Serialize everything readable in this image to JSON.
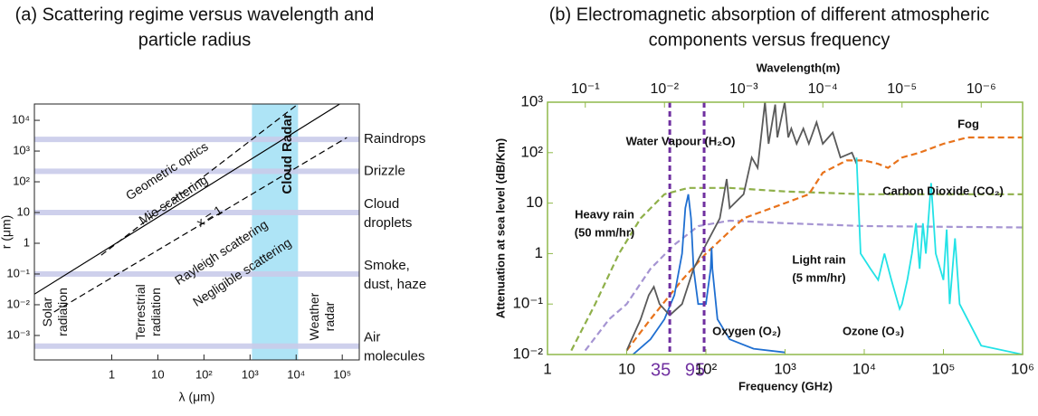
{
  "chart_data": [
    {
      "type": "regime",
      "title": [
        "(a) Scattering regime versus wavelength and",
        "particle radius"
      ],
      "xlabel": "λ (μm)",
      "ylabel": "r (μm)",
      "xscale": "log",
      "yscale": "log",
      "xlim": [
        0.021,
        234000
      ],
      "ylim": [
        0.00016,
        34000
      ],
      "xticks": [
        1,
        10,
        {
          "value": 100,
          "label": "10²"
        },
        {
          "value": 1000,
          "label": "10³"
        },
        {
          "value": 10000,
          "label": "10⁴"
        },
        {
          "value": 100000,
          "label": "10⁵"
        }
      ],
      "yticks": [
        {
          "value": 0.001,
          "label": "10⁻³"
        },
        {
          "value": 0.01,
          "label": "10⁻²"
        },
        {
          "value": 0.1,
          "label": "10⁻¹"
        },
        1,
        10,
        {
          "value": 100,
          "label": "10²"
        },
        {
          "value": 1000,
          "label": "10³"
        },
        {
          "value": 10000,
          "label": "10⁴"
        }
      ],
      "bands_color": "#c9cbea",
      "bands": [
        {
          "label": [
            "Raindrops"
          ],
          "value": 2400
        },
        {
          "label": [
            "Drizzle"
          ],
          "value": 220
        },
        {
          "label": [
            "Cloud",
            "droplets"
          ],
          "value": 10
        },
        {
          "label": [
            "Smoke,",
            "dust, haze"
          ],
          "value": 0.1
        },
        {
          "label": [
            "Air",
            "molecules"
          ],
          "value": 0.00045
        }
      ],
      "highlight": {
        "label": "Cloud Radar",
        "range": [
          1100,
          11000
        ],
        "color": "#aee4f6"
      },
      "series": [
        {
          "name": "x = 1",
          "color": "#000000",
          "dash": false,
          "x": [
            0.021,
            88000
          ],
          "values": [
            0.022,
            34000
          ]
        },
        {
          "color": "#000000",
          "dash": true,
          "x": [
            0.59,
            11000
          ],
          "values": [
            0.41,
            34000
          ]
        },
        {
          "color": "#000000",
          "dash": true,
          "x": [
            0.056,
            126000
          ],
          "values": [
            0.0058,
            2750
          ]
        }
      ],
      "annotations": [
        "Geometric optics",
        "Mie scattering",
        "Rayleigh scattering",
        "Negligible scattering",
        [
          "Solar",
          "radiation"
        ],
        [
          "Terrestrial",
          "radiation"
        ],
        [
          "Weather",
          "radar"
        ]
      ]
    },
    {
      "type": "line",
      "title": [
        "(b) Electromagnetic absorption of different atmospheric",
        "components versus frequency"
      ],
      "xlabel": "Frequency (GHz)",
      "ylabel": "Attenuation at sea level (dB/Km)",
      "x2label": "Wavelength(m)",
      "xscale": "log",
      "yscale": "log",
      "xlim": [
        1,
        1000000
      ],
      "ylim": [
        0.01,
        1000
      ],
      "xticks": [
        1,
        10,
        {
          "value": 100,
          "label": "10²"
        },
        {
          "value": 1000,
          "label": "10³"
        },
        {
          "value": 10000,
          "label": "10⁴"
        },
        {
          "value": 100000,
          "label": "10⁵"
        },
        {
          "value": 1000000,
          "label": "10⁶"
        }
      ],
      "yticks": [
        {
          "value": 0.01,
          "label": "10⁻²"
        },
        {
          "value": 0.1,
          "label": "10⁻¹"
        },
        1,
        10,
        {
          "value": 100,
          "label": "10²"
        },
        {
          "value": 1000,
          "label": "10³"
        }
      ],
      "x2lim": [
        0.3,
        3e-07
      ],
      "x2ticks": [
        {
          "value": 0.1,
          "label": "10⁻¹"
        },
        {
          "value": 0.01,
          "label": "10⁻²"
        },
        {
          "value": 0.001,
          "label": "10⁻³"
        },
        {
          "value": 0.0001,
          "label": "10⁻⁴"
        },
        {
          "value": 1e-05,
          "label": "10⁻⁵"
        },
        {
          "value": 1e-06,
          "label": "10⁻⁶"
        }
      ],
      "frame_color": "#8fb84a",
      "vlines": {
        "values": [
          35,
          95
        ],
        "color": "#7030a0"
      },
      "series": [
        {
          "name": [
            "Heavy rain",
            "(50 mm/hr)"
          ],
          "color": "#8fb04a",
          "dash": true,
          "x": [
            2,
            4,
            8,
            15,
            30,
            60,
            200,
            1000,
            10000,
            1000000
          ],
          "values": [
            0.012,
            0.1,
            1,
            5,
            15,
            20,
            20,
            17,
            15,
            15
          ]
        },
        {
          "name": [
            "Light rain",
            "(5 mm/hr)"
          ],
          "color": "#a594d2",
          "dash": true,
          "x": [
            3,
            6,
            10,
            20,
            40,
            80,
            200,
            1000,
            10000,
            1000000
          ],
          "values": [
            0.012,
            0.05,
            0.1,
            0.5,
            1.5,
            3.5,
            4.5,
            4,
            3.5,
            3.3
          ]
        },
        {
          "name": "Fog",
          "color": "#e8731c",
          "dash": true,
          "x": [
            10,
            20,
            50,
            100,
            300,
            1000,
            2000,
            3000,
            6000,
            10000,
            15000,
            20000,
            30000,
            50000,
            100000,
            200000,
            1000000
          ],
          "values": [
            0.012,
            0.05,
            0.3,
            1,
            5,
            10,
            15,
            40,
            70,
            70,
            60,
            50,
            80,
            100,
            150,
            200,
            200
          ]
        },
        {
          "name": "Oxygen (O₂)",
          "color": "#1f6fd1",
          "dash": false,
          "x": [
            12,
            20,
            30,
            40,
            50,
            55,
            60,
            65,
            70,
            80,
            100,
            115,
            118,
            121,
            140,
            200,
            400,
            1000
          ],
          "values": [
            0.01,
            0.02,
            0.05,
            0.15,
            1,
            8,
            15,
            5,
            0.5,
            0.1,
            0.1,
            0.5,
            1.3,
            0.5,
            0.05,
            0.02,
            0.013,
            0.011
          ]
        },
        {
          "name": "Water Vapour (H₂O)",
          "color": "#5a5a5a",
          "dash": false,
          "x": [
            10,
            15,
            19,
            22,
            26,
            35,
            50,
            70,
            100,
            150,
            183,
            200,
            300,
            380,
            450,
            557,
            620,
            750,
            800,
            990,
            1100,
            1200,
            1400,
            1700,
            2000,
            2500,
            3000,
            4000,
            5000,
            7000,
            8000
          ],
          "values": [
            0.012,
            0.05,
            0.15,
            0.22,
            0.1,
            0.06,
            0.1,
            0.5,
            1.5,
            5,
            30,
            8,
            15,
            80,
            50,
            1000,
            150,
            900,
            200,
            1000,
            200,
            300,
            150,
            300,
            150,
            400,
            150,
            250,
            80,
            100,
            60
          ]
        },
        {
          "name": "Carbon Dioxide (CO₂)",
          "color": "#22e2e6",
          "dash": false,
          "x": [
            8000,
            9000,
            12000,
            15000,
            18000,
            22000,
            28000,
            30000,
            35000,
            40000,
            45000,
            50000,
            55000,
            60000,
            70000,
            80000,
            100000,
            110000,
            120000,
            140000,
            160000,
            300000,
            1000000
          ],
          "values": [
            80,
            1,
            0.5,
            0.3,
            1,
            0.3,
            0.08,
            0.1,
            0.3,
            1,
            4,
            0.5,
            4,
            1,
            25,
            1,
            0.3,
            3,
            0.1,
            2,
            0.1,
            0.015,
            0.01
          ]
        }
      ],
      "annotations": [
        "Ozone (O₃)"
      ]
    }
  ]
}
